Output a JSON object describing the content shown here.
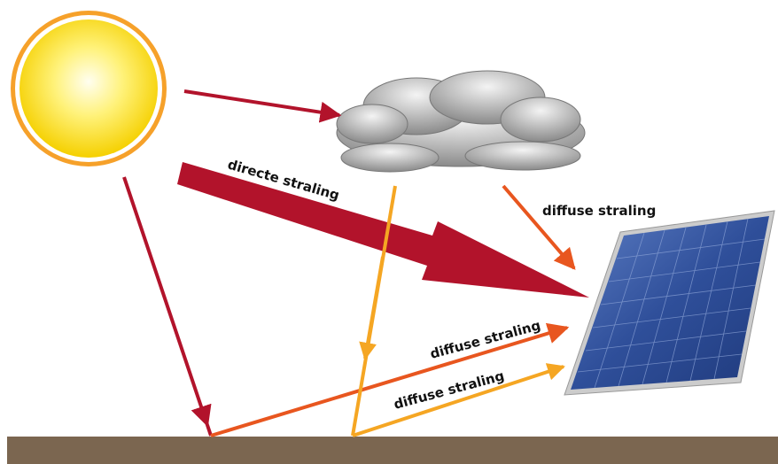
{
  "labels": [
    "directe straling",
    "diffuse straling",
    "diffuse straling",
    "diffuse straling"
  ]
}
